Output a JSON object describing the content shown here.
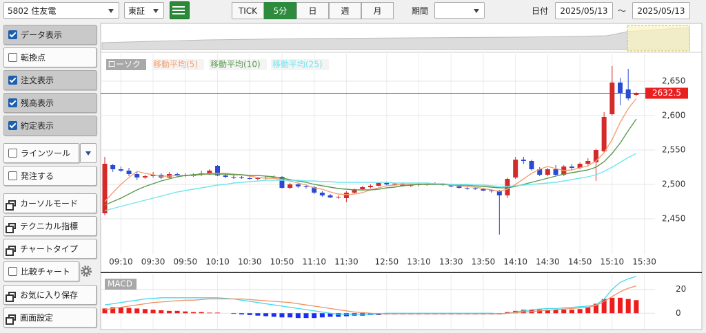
{
  "toolbar": {
    "symbol": "5802 住友電",
    "market": "東証",
    "tabs": [
      "TICK",
      "5分",
      "日",
      "週",
      "月"
    ],
    "active_tab": 1,
    "period_label": "期間",
    "date_label": "日付",
    "date_from": "2025/05/13",
    "separator": "～",
    "date_to": "2025/05/13"
  },
  "sidebar": {
    "items": [
      {
        "label": "データ表示",
        "kind": "check",
        "checked": true
      },
      {
        "label": "転換点",
        "kind": "check",
        "checked": false
      },
      {
        "label": "注文表示",
        "kind": "check",
        "checked": true
      },
      {
        "label": "残高表示",
        "kind": "check",
        "checked": true
      },
      {
        "label": "約定表示",
        "kind": "check",
        "checked": true
      },
      {
        "label": "ラインツール",
        "kind": "check",
        "checked": false,
        "menu": true
      },
      {
        "label": "発注する",
        "kind": "check",
        "checked": false
      },
      {
        "label": "カーソルモード",
        "kind": "window"
      },
      {
        "label": "テクニカル指標",
        "kind": "window"
      },
      {
        "label": "チャートタイプ",
        "kind": "window"
      },
      {
        "label": "比較チャート",
        "kind": "check",
        "checked": false,
        "settings": true
      },
      {
        "label": "お気に入り保存",
        "kind": "window"
      },
      {
        "label": "画面設定",
        "kind": "window"
      }
    ]
  },
  "chart_data": {
    "type": "candlestick",
    "grid": true,
    "categories": [
      null,
      null,
      "09:10",
      null,
      null,
      null,
      "09:30",
      null,
      null,
      null,
      "09:50",
      null,
      null,
      null,
      "10:10",
      null,
      null,
      null,
      "10:30",
      null,
      null,
      null,
      "10:50",
      null,
      null,
      null,
      "11:10",
      null,
      null,
      null,
      "11:30",
      null,
      null,
      null,
      null,
      "12:50",
      null,
      null,
      null,
      "13:10",
      null,
      null,
      null,
      "13:30",
      null,
      null,
      null,
      "13:50",
      null,
      null,
      null,
      "14:10",
      null,
      null,
      null,
      "14:30",
      null,
      null,
      null,
      "14:50",
      null,
      null,
      null,
      "15:10",
      null,
      null,
      null,
      "15:30"
    ],
    "ylim": [
      2402,
      2688
    ],
    "yticks": [
      {
        "value": 2450,
        "label": "2,450"
      },
      {
        "value": 2500,
        "label": "2,500"
      },
      {
        "value": 2550,
        "label": "2,550"
      },
      {
        "value": 2600,
        "label": "2,600"
      },
      {
        "value": 2650,
        "label": "2,650"
      }
    ],
    "last_price": 2632.5,
    "last_price_color": "#e82020",
    "candles": {
      "name": "ローソク",
      "up_color": "#d42a2a",
      "down_color": "#2a4bd0",
      "open": [
        2458,
        2528,
        2522,
        2520,
        2515,
        2510,
        2512,
        2514,
        2510,
        2515,
        2513,
        2512,
        2514,
        2516,
        2527,
        2513,
        2511,
        2510,
        2509,
        2508,
        2509,
        2510,
        2511,
        2495,
        2500,
        2497,
        2496,
        2488,
        2484,
        2481,
        2480,
        2488,
        2493,
        2496,
        2498,
        2502,
        2500,
        2501,
        2498,
        2499,
        2500,
        2501,
        2500,
        2499,
        2497,
        2495,
        2494,
        2493,
        2491,
        2490,
        2484,
        2510,
        2536,
        2534,
        2522,
        2514,
        2522,
        2514,
        2526,
        2524,
        2530,
        2532,
        2548,
        2602,
        2648,
        2638,
        2630,
        null
      ],
      "high": [
        2540,
        2530,
        2526,
        2524,
        2518,
        2514,
        2518,
        2516,
        2518,
        2517,
        2516,
        2516,
        2520,
        2522,
        2528,
        2515,
        2513,
        2512,
        2512,
        2511,
        2512,
        2513,
        2512,
        2502,
        2502,
        2500,
        2498,
        2490,
        2486,
        2484,
        2490,
        2494,
        2498,
        2500,
        2503,
        2504,
        2502,
        2502,
        2501,
        2502,
        2502,
        2503,
        2502,
        2500,
        2499,
        2497,
        2496,
        2495,
        2493,
        2492,
        2510,
        2540,
        2540,
        2536,
        2525,
        2524,
        2528,
        2528,
        2530,
        2532,
        2538,
        2552,
        2605,
        2672,
        2655,
        2668,
        2634,
        null
      ],
      "low": [
        2455,
        2518,
        2518,
        2512,
        2506,
        2508,
        2510,
        2508,
        2509,
        2511,
        2511,
        2511,
        2512,
        2514,
        2512,
        2509,
        2508,
        2508,
        2507,
        2506,
        2507,
        2508,
        2494,
        2493,
        2495,
        2494,
        2486,
        2482,
        2480,
        2479,
        2474,
        2486,
        2491,
        2494,
        2497,
        2499,
        2498,
        2497,
        2496,
        2497,
        2498,
        2499,
        2498,
        2496,
        2494,
        2492,
        2492,
        2490,
        2488,
        2427,
        2480,
        2508,
        2530,
        2520,
        2512,
        2512,
        2512,
        2512,
        2520,
        2522,
        2526,
        2505,
        2545,
        2600,
        2615,
        2622,
        2628,
        null
      ],
      "close": [
        2530,
        2522,
        2520,
        2515,
        2510,
        2512,
        2514,
        2510,
        2515,
        2513,
        2513,
        2514,
        2516,
        2520,
        2513,
        2511,
        2510,
        2509,
        2508,
        2509,
        2510,
        2511,
        2495,
        2500,
        2497,
        2496,
        2488,
        2484,
        2481,
        2482,
        2488,
        2493,
        2496,
        2498,
        2502,
        2500,
        2501,
        2498,
        2499,
        2500,
        2501,
        2500,
        2499,
        2497,
        2495,
        2494,
        2493,
        2491,
        2490,
        2484,
        2508,
        2536,
        2534,
        2522,
        2514,
        2522,
        2514,
        2526,
        2524,
        2530,
        2534,
        2550,
        2598,
        2648,
        2632,
        2625,
        2632.5,
        null
      ]
    },
    "series": [
      {
        "name": "移動平均(5)",
        "color": "#f4a070",
        "values": [
          2475,
          2488,
          2500,
          2510,
          2519,
          2516,
          2514,
          2512,
          2512,
          2513,
          2513,
          2513,
          2514,
          2516,
          2516,
          2516,
          2515,
          2514,
          2512,
          2510,
          2509,
          2509,
          2507,
          2505,
          2502,
          2499,
          2495,
          2493,
          2489,
          2486,
          2485,
          2486,
          2488,
          2492,
          2495,
          2498,
          2499,
          2500,
          2500,
          2500,
          2500,
          2500,
          2500,
          2499,
          2498,
          2497,
          2496,
          2494,
          2492,
          2490,
          2493,
          2500,
          2508,
          2516,
          2522,
          2526,
          2523,
          2520,
          2521,
          2524,
          2527,
          2534,
          2546,
          2565,
          2590,
          2610,
          2625,
          null
        ]
      },
      {
        "name": "移動平均(10)",
        "color": "#5a9a50",
        "values": [
          2470,
          2475,
          2480,
          2486,
          2492,
          2497,
          2501,
          2505,
          2508,
          2511,
          2513,
          2514,
          2515,
          2515,
          2515,
          2515,
          2514,
          2514,
          2513,
          2513,
          2512,
          2511,
          2509,
          2507,
          2505,
          2503,
          2500,
          2498,
          2496,
          2494,
          2493,
          2492,
          2492,
          2492,
          2493,
          2495,
          2496,
          2498,
          2499,
          2500,
          2500,
          2500,
          2500,
          2500,
          2499,
          2499,
          2498,
          2497,
          2496,
          2495,
          2495,
          2497,
          2500,
          2503,
          2506,
          2509,
          2512,
          2515,
          2517,
          2519,
          2521,
          2525,
          2533,
          2545,
          2560,
          2578,
          2595,
          null
        ]
      },
      {
        "name": "移動平均(25)",
        "color": "#6ee6ee",
        "values": [
          2462,
          2465,
          2468,
          2471,
          2474,
          2477,
          2480,
          2483,
          2486,
          2489,
          2491,
          2493,
          2495,
          2497,
          2499,
          2500,
          2502,
          2503,
          2504,
          2505,
          2506,
          2506,
          2506,
          2506,
          2506,
          2505,
          2505,
          2504,
          2504,
          2503,
          2503,
          2503,
          2503,
          2503,
          2503,
          2503,
          2502,
          2502,
          2502,
          2502,
          2502,
          2501,
          2501,
          2500,
          2500,
          2500,
          2499,
          2499,
          2498,
          2497,
          2497,
          2498,
          2499,
          2500,
          2501,
          2502,
          2503,
          2505,
          2507,
          2509,
          2511,
          2514,
          2519,
          2525,
          2532,
          2539,
          2545,
          null
        ]
      }
    ],
    "macd": {
      "label": "MACD",
      "ylim": [
        -12,
        32
      ],
      "yticks": [
        0,
        20
      ],
      "series": [
        {
          "color": "#40d8f0",
          "values": [
            7,
            8,
            9,
            10,
            11,
            12,
            12.5,
            13,
            13,
            13,
            13,
            13,
            13,
            13,
            13,
            12.5,
            12,
            11,
            10,
            9,
            8,
            7,
            6,
            5,
            4,
            3,
            2,
            1,
            0,
            -1,
            -1,
            -1,
            -1,
            -1,
            -0.5,
            0,
            0,
            0,
            0,
            0,
            0,
            0,
            0,
            0,
            0,
            0,
            0,
            0,
            0,
            -0.5,
            0,
            1,
            2,
            3,
            3.5,
            4,
            4,
            4.5,
            5,
            5.5,
            6,
            7,
            12,
            20,
            26,
            29,
            31,
            null
          ]
        },
        {
          "color": "#f09060",
          "values": [
            3,
            4,
            5,
            6,
            7,
            8,
            9,
            9.5,
            10,
            10.5,
            11,
            11,
            11.5,
            12,
            12,
            12,
            12,
            12,
            11.5,
            11,
            10.5,
            10,
            9.5,
            9,
            8,
            7,
            6,
            5,
            4,
            3,
            2,
            1,
            0.5,
            0,
            -0.5,
            -0.5,
            -0.5,
            -0.5,
            -0.5,
            -0.5,
            -0.5,
            -0.5,
            -0.5,
            -0.5,
            -0.5,
            -0.5,
            -0.5,
            -0.5,
            -0.5,
            -0.5,
            0,
            0.5,
            1,
            1.5,
            2,
            2.5,
            3,
            3.5,
            4,
            4.5,
            5,
            6.5,
            10,
            14,
            18,
            21,
            23,
            null
          ]
        }
      ],
      "histogram": {
        "up_color": "#ee1c1c",
        "down_color": "#1c2ee8",
        "values": [
          4,
          5,
          5,
          4.5,
          4,
          3.5,
          3,
          2.5,
          2,
          2,
          1.5,
          1,
          1,
          0.5,
          0.5,
          0,
          -0.5,
          -1,
          -1.5,
          -2,
          -2.5,
          -3,
          -3.5,
          -3.5,
          -4,
          -4,
          -4,
          -3.5,
          -3,
          -3,
          -2.5,
          -2,
          -2,
          -1.5,
          -1.5,
          -1,
          -1,
          -1,
          -1,
          -1,
          -1,
          -1,
          -1,
          -1,
          -1,
          -1,
          -1,
          -1,
          -1,
          -1,
          1,
          2,
          3,
          3,
          3,
          3,
          3,
          3,
          3,
          3.5,
          5,
          8,
          12,
          13,
          13,
          12,
          11,
          null
        ]
      }
    }
  }
}
